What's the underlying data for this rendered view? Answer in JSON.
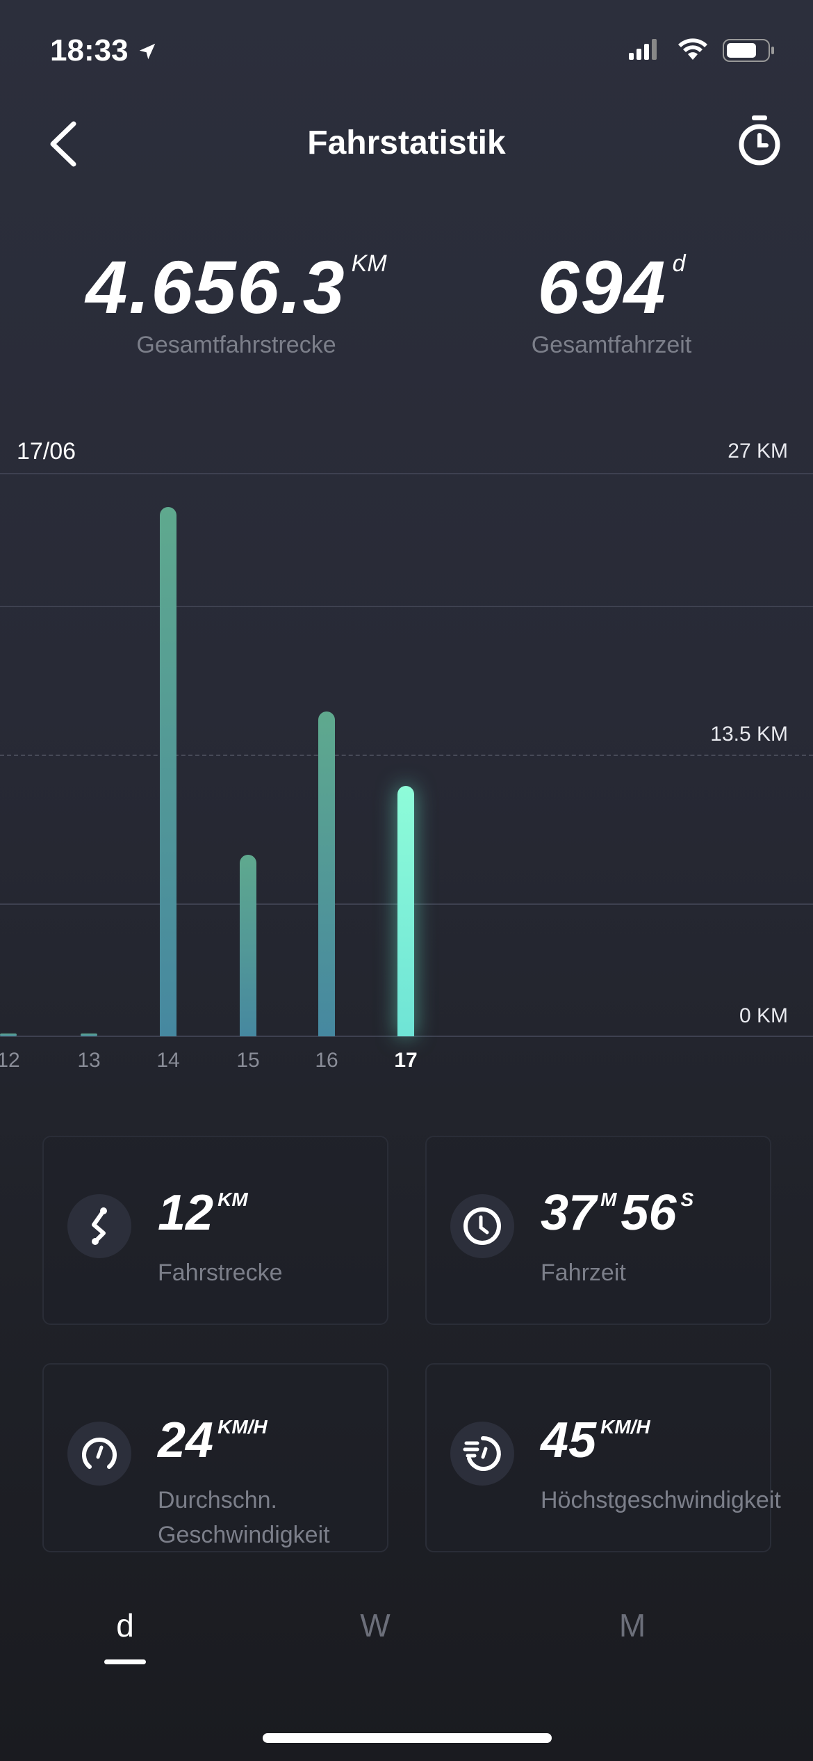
{
  "status": {
    "time": "18:33"
  },
  "header": {
    "title": "Fahrstatistik"
  },
  "totals": {
    "distance": "4.656.3",
    "distance_unit": "KM",
    "distance_label": "Gesamtfahrstrecke",
    "time": "694",
    "time_unit": "d",
    "time_label": "Gesamtfahrzeit"
  },
  "chart_data": {
    "type": "bar",
    "title": "17/06",
    "categories": [
      "12",
      "13",
      "14",
      "15",
      "16",
      "17"
    ],
    "values": [
      0.1,
      0.1,
      25.4,
      8.7,
      15.6,
      12
    ],
    "selected": "17",
    "ylim": [
      0,
      27
    ],
    "ytick_labels": [
      "27 KM",
      "13.5 KM",
      "0 KM"
    ],
    "unit": "KM"
  },
  "cards": [
    {
      "value": "12",
      "unit": "KM",
      "label": "Fahrstrecke"
    },
    {
      "value": "37",
      "unit": "M",
      "value2": "56",
      "unit2": "S",
      "label": "Fahrzeit"
    },
    {
      "value": "24",
      "unit": "KM/H",
      "label": "Durchschn. Geschwindigkeit"
    },
    {
      "value": "45",
      "unit": "KM/H",
      "label": "Höchstgeschwindigkeit"
    }
  ],
  "tabs": [
    {
      "label": "d"
    },
    {
      "label": "W"
    },
    {
      "label": "M"
    }
  ]
}
